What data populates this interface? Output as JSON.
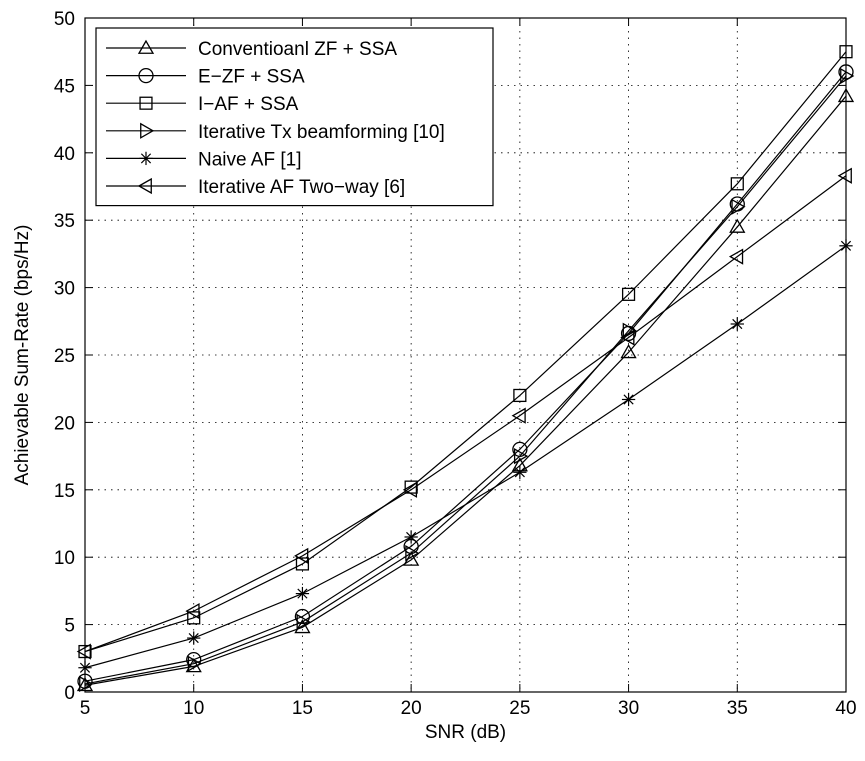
{
  "chart_data": {
    "type": "line",
    "title": "",
    "xlabel": "SNR (dB)",
    "ylabel": "Achievable Sum-Rate (bps/Hz)",
    "xlim": [
      5,
      40
    ],
    "ylim": [
      0,
      50
    ],
    "xticks": [
      5,
      10,
      15,
      20,
      25,
      30,
      35,
      40
    ],
    "yticks": [
      0,
      5,
      10,
      15,
      20,
      25,
      30,
      35,
      40,
      45,
      50
    ],
    "xtick_labels": [
      "5",
      "10",
      "15",
      "20",
      "25",
      "30",
      "35",
      "40"
    ],
    "ytick_labels": [
      "0",
      "5",
      "10",
      "15",
      "20",
      "25",
      "30",
      "35",
      "40",
      "45",
      "50"
    ],
    "grid": true,
    "legend_position": "top-left",
    "x": [
      5,
      10,
      15,
      20,
      25,
      30,
      35,
      40
    ],
    "series": [
      {
        "name": "Conventioanl ZF + SSA",
        "marker": "triangle-up",
        "color": "#000000",
        "values": [
          0.5,
          1.9,
          4.8,
          9.8,
          16.8,
          25.2,
          34.5,
          44.2
        ]
      },
      {
        "name": "E−ZF + SSA",
        "marker": "circle",
        "color": "#000000",
        "values": [
          0.8,
          2.4,
          5.6,
          10.8,
          18.0,
          26.6,
          36.2,
          46.0
        ]
      },
      {
        "name": "I−AF + SSA",
        "marker": "square",
        "color": "#000000",
        "values": [
          3.0,
          5.5,
          9.5,
          15.2,
          22.0,
          29.5,
          37.7,
          47.5
        ]
      },
      {
        "name": "Iterative Tx beamforming [10]",
        "marker": "triangle-right",
        "color": "#000000",
        "values": [
          0.6,
          2.1,
          5.2,
          10.3,
          17.5,
          26.8,
          36.0,
          45.7
        ]
      },
      {
        "name": "Naive AF [1]",
        "marker": "asterisk",
        "color": "#000000",
        "values": [
          1.8,
          4.0,
          7.3,
          11.5,
          16.3,
          21.7,
          27.3,
          33.1
        ]
      },
      {
        "name": "Iterative AF Two−way [6]",
        "marker": "triangle-left",
        "color": "#000000",
        "values": [
          3.0,
          6.0,
          10.1,
          15.0,
          20.5,
          26.3,
          32.3,
          38.3
        ]
      }
    ]
  }
}
